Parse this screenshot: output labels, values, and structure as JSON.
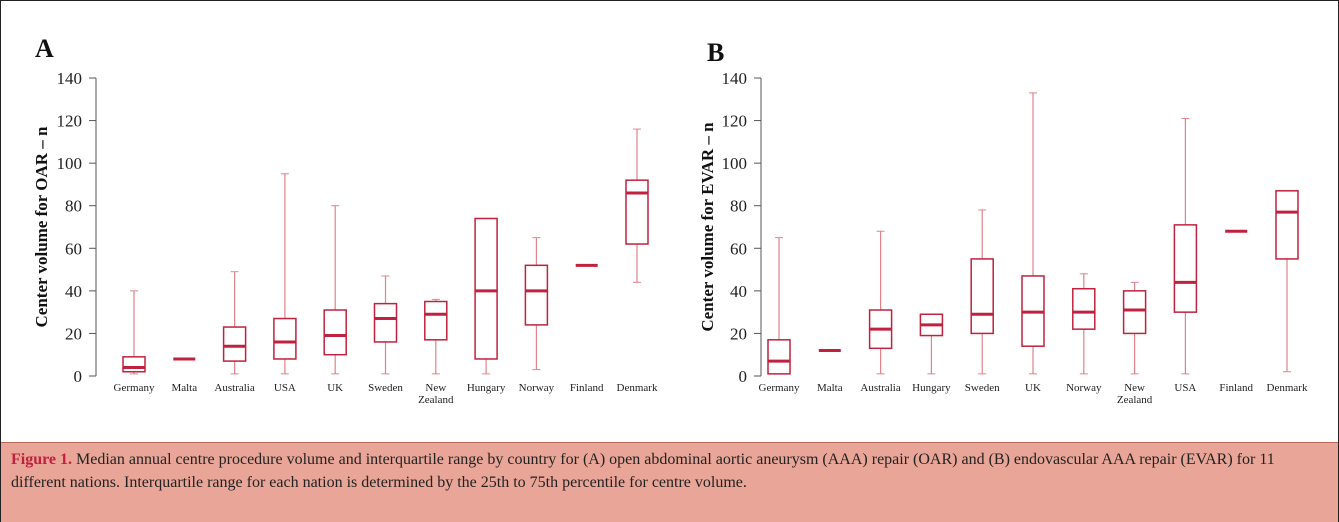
{
  "chart_data": [
    {
      "type": "box",
      "panel": "A",
      "ylabel": "Center volume for OAR – n",
      "categories": [
        "Germany",
        "Malta",
        "Australia",
        "USA",
        "UK",
        "Sweden",
        "New Zealand",
        "Hungary",
        "Norway",
        "Finland",
        "Denmark"
      ],
      "min": [
        1,
        8,
        1,
        1,
        1,
        1,
        1,
        1,
        3,
        52,
        44
      ],
      "q1": [
        2,
        8,
        7,
        8,
        10,
        16,
        17,
        8,
        24,
        52,
        62
      ],
      "median": [
        4,
        8,
        14,
        16,
        19,
        27,
        29,
        40,
        40,
        52,
        86
      ],
      "q3": [
        9,
        8,
        23,
        27,
        31,
        34,
        35,
        74,
        52,
        52,
        92
      ],
      "max": [
        40,
        8,
        49,
        95,
        80,
        47,
        36,
        74,
        65,
        52,
        116
      ],
      "ylim": [
        0,
        140
      ],
      "yticks": [
        0,
        20,
        40,
        60,
        80,
        100,
        120,
        140
      ],
      "color": "#c0213e",
      "whisker_color": "#e0838a"
    },
    {
      "type": "box",
      "panel": "B",
      "ylabel": "Center volume for EVAR – n",
      "categories": [
        "Germany",
        "Malta",
        "Australia",
        "Hungary",
        "Sweden",
        "UK",
        "Norway",
        "New Zealand",
        "USA",
        "Finland",
        "Denmark"
      ],
      "min": [
        1,
        12,
        1,
        1,
        1,
        1,
        1,
        1,
        1,
        68,
        2
      ],
      "q1": [
        1,
        12,
        13,
        19,
        20,
        14,
        22,
        20,
        30,
        68,
        55
      ],
      "median": [
        7,
        12,
        22,
        24,
        29,
        30,
        30,
        31,
        44,
        68,
        77
      ],
      "q3": [
        17,
        12,
        31,
        29,
        55,
        47,
        41,
        40,
        71,
        68,
        87
      ],
      "max": [
        65,
        12,
        68,
        29,
        78,
        133,
        48,
        44,
        121,
        68,
        87
      ],
      "ylim": [
        0,
        140
      ],
      "yticks": [
        0,
        20,
        40,
        60,
        80,
        100,
        120,
        140
      ],
      "color": "#c0213e",
      "whisker_color": "#e0838a"
    }
  ],
  "caption": {
    "label": "Figure 1.",
    "text": "Median annual centre procedure volume and interquartile range by country for (A) open abdominal aortic aneurysm (AAA) repair (OAR) and (B) endovascular AAA repair (EVAR) for 11 different nations. Interquartile range for each nation is determined by the 25th to 75th percentile for centre volume."
  }
}
